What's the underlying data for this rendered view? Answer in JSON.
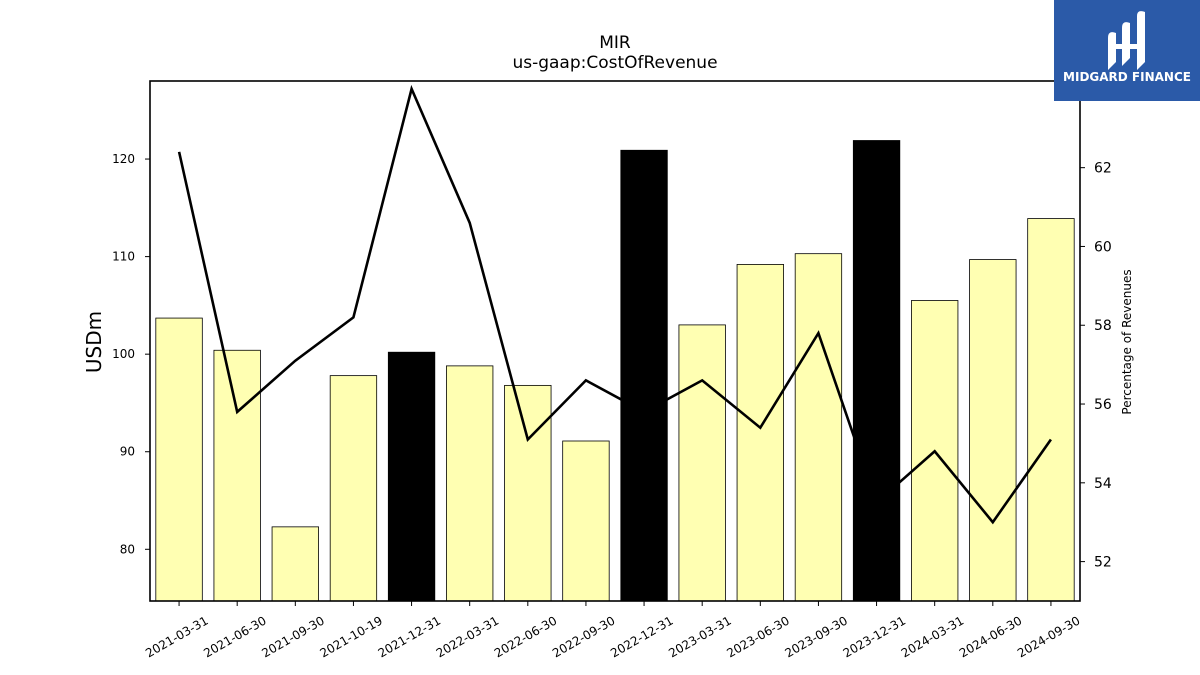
{
  "logo": {
    "text": "MIDGARD FINANCE",
    "bg_color": "#2b5aa8"
  },
  "chart_data": {
    "type": "bar",
    "title": "MIR",
    "subtitle": "us-gaap:CostOfRevenue",
    "ylabel": "USDm",
    "ylabel_right": "Percentage of Revenues",
    "categories": [
      "2021-03-31",
      "2021-06-30",
      "2021-09-30",
      "2021-10-19",
      "2021-12-31",
      "2022-03-31",
      "2022-06-30",
      "2022-09-30",
      "2022-12-31",
      "2023-03-31",
      "2023-06-30",
      "2023-09-30",
      "2023-12-31",
      "2024-03-31",
      "2024-06-30",
      "2024-09-30"
    ],
    "values": [
      103.7,
      100.4,
      82.3,
      97.8,
      100.2,
      98.8,
      96.8,
      91.1,
      120.9,
      103.0,
      109.2,
      110.3,
      121.9,
      105.5,
      109.7,
      113.9
    ],
    "highlighted": [
      false,
      false,
      false,
      false,
      true,
      false,
      false,
      false,
      true,
      false,
      false,
      false,
      true,
      false,
      false,
      false
    ],
    "bar_color": "#ffffb2",
    "highlight_color": "#000000",
    "ylim": [
      74.7,
      128.0
    ],
    "yticks": [
      80,
      90,
      100,
      110,
      120
    ],
    "line_series": {
      "name": "",
      "values": [
        62.4,
        55.8,
        57.1,
        58.2,
        64.0,
        60.6,
        55.1,
        56.6,
        55.8,
        56.6,
        55.4,
        57.8,
        53.5,
        54.8,
        53.0,
        55.1
      ]
    },
    "ylim_right": [
      51.0,
      64.2
    ],
    "yticks_right": [
      52,
      54,
      56,
      58,
      60,
      62
    ]
  }
}
